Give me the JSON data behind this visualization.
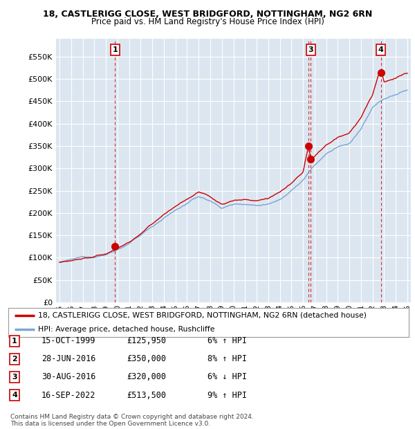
{
  "title1": "18, CASTLERIGG CLOSE, WEST BRIDGFORD, NOTTINGHAM, NG2 6RN",
  "title2": "Price paid vs. HM Land Registry's House Price Index (HPI)",
  "ylabel_ticks": [
    "£0",
    "£50K",
    "£100K",
    "£150K",
    "£200K",
    "£250K",
    "£300K",
    "£350K",
    "£400K",
    "£450K",
    "£500K",
    "£550K"
  ],
  "ytick_vals": [
    0,
    50000,
    100000,
    150000,
    200000,
    250000,
    300000,
    350000,
    400000,
    450000,
    500000,
    550000
  ],
  "ylim": [
    0,
    590000
  ],
  "xlim_start": 1994.7,
  "xlim_end": 2025.3,
  "xticks": [
    1995,
    1996,
    1997,
    1998,
    1999,
    2000,
    2001,
    2002,
    2003,
    2004,
    2005,
    2006,
    2007,
    2008,
    2009,
    2010,
    2011,
    2012,
    2013,
    2014,
    2015,
    2016,
    2017,
    2018,
    2019,
    2020,
    2021,
    2022,
    2023,
    2024,
    2025
  ],
  "background_color": "#dce6f1",
  "grid_color": "#ffffff",
  "line_color_red": "#cc0000",
  "line_color_blue": "#6699cc",
  "purchases": [
    {
      "num": 1,
      "date_x": 1999.79,
      "price": 125950,
      "label": "1",
      "show_box": true
    },
    {
      "num": 2,
      "date_x": 2016.49,
      "price": 350000,
      "label": "2",
      "show_box": false
    },
    {
      "num": 3,
      "date_x": 2016.66,
      "price": 320000,
      "label": "3",
      "show_box": true
    },
    {
      "num": 4,
      "date_x": 2022.71,
      "price": 513500,
      "label": "4",
      "show_box": true
    }
  ],
  "legend_line1": "18, CASTLERIGG CLOSE, WEST BRIDGFORD, NOTTINGHAM, NG2 6RN (detached house)",
  "legend_line2": "HPI: Average price, detached house, Rushcliffe",
  "table_rows": [
    {
      "num": "1",
      "date": "15-OCT-1999",
      "price": "£125,950",
      "pct": "6% ↑ HPI"
    },
    {
      "num": "2",
      "date": "28-JUN-2016",
      "price": "£350,000",
      "pct": "8% ↑ HPI"
    },
    {
      "num": "3",
      "date": "30-AUG-2016",
      "price": "£320,000",
      "pct": "6% ↓ HPI"
    },
    {
      "num": "4",
      "date": "16-SEP-2022",
      "price": "£513,500",
      "pct": "9% ↑ HPI"
    }
  ],
  "footnote1": "Contains HM Land Registry data © Crown copyright and database right 2024.",
  "footnote2": "This data is licensed under the Open Government Licence v3.0."
}
